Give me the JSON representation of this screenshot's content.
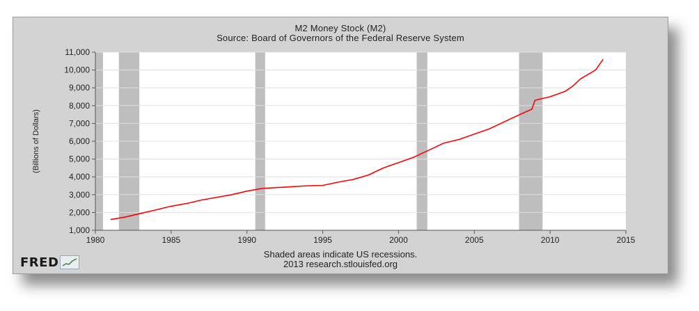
{
  "chart_data": {
    "type": "line",
    "title": "M2 Money Stock (M2)",
    "subtitle": "Source: Board of Governors of the Federal Reserve System",
    "xlabel": "",
    "ylabel": "(Billions of Dollars)",
    "xlim": [
      1980,
      2015
    ],
    "ylim": [
      1000,
      11000
    ],
    "x_ticks": [
      1980,
      1985,
      1990,
      1995,
      2000,
      2005,
      2010,
      2015
    ],
    "y_ticks": [
      1000,
      2000,
      3000,
      4000,
      5000,
      6000,
      7000,
      8000,
      9000,
      10000,
      11000
    ],
    "x_tick_labels": [
      "1980",
      "1985",
      "1990",
      "1995",
      "2000",
      "2005",
      "2010",
      "2015"
    ],
    "y_tick_labels": [
      "1,000",
      "2,000",
      "3,000",
      "4,000",
      "5,000",
      "6,000",
      "7,000",
      "8,000",
      "9,000",
      "10,000",
      "11,000"
    ],
    "grid": true,
    "recessions": [
      [
        1980.0,
        1980.5
      ],
      [
        1981.55,
        1982.9
      ],
      [
        1990.55,
        1991.2
      ],
      [
        2001.2,
        2001.9
      ],
      [
        2007.95,
        2009.5
      ]
    ],
    "series": [
      {
        "color": "#ff0000",
        "x": [
          1981.0,
          1982.0,
          1983.0,
          1984.0,
          1985.0,
          1986.0,
          1987.0,
          1988.0,
          1989.0,
          1990.0,
          1991.0,
          1992.0,
          1993.0,
          1994.0,
          1995.0,
          1996.0,
          1997.0,
          1998.0,
          1999.0,
          2000.0,
          2001.0,
          2002.0,
          2003.0,
          2004.0,
          2005.0,
          2006.0,
          2007.0,
          2008.0,
          2008.8,
          2009.0,
          2010.0,
          2011.0,
          2011.5,
          2012.0,
          2013.0,
          2013.5
        ],
        "values": [
          1600,
          1750,
          1950,
          2150,
          2350,
          2500,
          2700,
          2850,
          3000,
          3200,
          3350,
          3400,
          3450,
          3500,
          3520,
          3700,
          3850,
          4100,
          4500,
          4800,
          5100,
          5500,
          5900,
          6100,
          6400,
          6700,
          7100,
          7500,
          7800,
          8300,
          8500,
          8800,
          9100,
          9500,
          10000,
          10600
        ]
      }
    ]
  },
  "footer": {
    "note": "Shaded areas indicate US recessions.",
    "credit": "2013 research.stlouisfed.org"
  },
  "logo": {
    "text": "FRED"
  },
  "colors": {
    "background": "#d3d3d3",
    "plot_background": "#ffffff",
    "recession_shade": "#bebebe",
    "grid": "#e0e0e0",
    "line": "#ff0000"
  }
}
